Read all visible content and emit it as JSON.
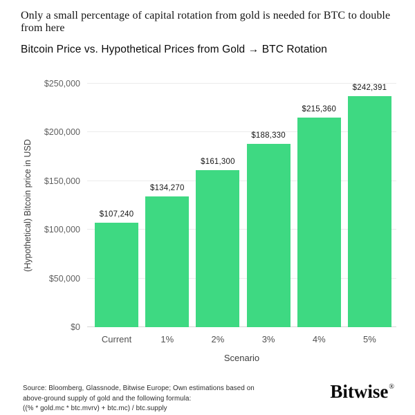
{
  "header": {
    "kicker": "Only a small percentage of capital rotation from gold is needed for BTC to double from here",
    "title": "Bitcoin Price vs. Hypothetical Prices from Gold → BTC Rotation"
  },
  "chart_data": {
    "type": "bar",
    "title": "Bitcoin Price vs. Hypothetical Prices from Gold → BTC Rotation",
    "categories": [
      "Current",
      "1%",
      "2%",
      "3%",
      "4%",
      "5%"
    ],
    "values": [
      107240,
      134270,
      161300,
      188330,
      215360,
      242391
    ],
    "value_labels": [
      "$107,240",
      "$134,270",
      "$161,300",
      "$188,330",
      "$215,360",
      "$242,391"
    ],
    "xlabel": "Scenario",
    "ylabel": "(Hypothetical) Bitcoin price in USD",
    "ylim": [
      0,
      250000
    ],
    "ytick_values": [
      0,
      50000,
      100000,
      150000,
      200000,
      250000
    ],
    "ytick_labels": [
      "$0",
      "$50,000",
      "$100,000",
      "$150,000",
      "$200,000",
      "$250,000"
    ],
    "bar_color": "#3ed982",
    "grid": true,
    "legend": "none"
  },
  "footer": {
    "source_text": "Source: Bloomberg, Glassnode, Bitwise Europe; Own estimations based on\nabove-ground supply of gold and the following formula:\n((% * gold.mc * btc.mvrv) + btc.mc) / btc.supply",
    "logo_text": "Bitwise",
    "logo_reg": "®"
  }
}
